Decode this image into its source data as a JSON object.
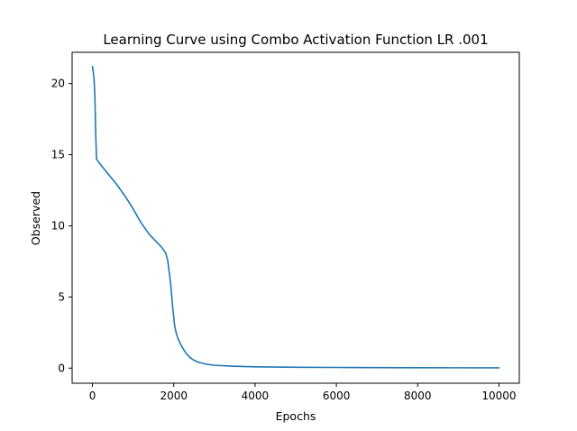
{
  "chart_data": {
    "type": "line",
    "title": "Learning Curve using Combo Activation Function  LR .001",
    "xlabel": "Epochs",
    "ylabel": "Observed",
    "xlim": [
      -500,
      10500
    ],
    "ylim": [
      -1.06,
      22.2
    ],
    "xticks": [
      0,
      2000,
      4000,
      6000,
      8000,
      10000
    ],
    "xtick_labels": [
      "0",
      "2000",
      "4000",
      "6000",
      "8000",
      "10000"
    ],
    "yticks": [
      0,
      5,
      10,
      15,
      20
    ],
    "ytick_labels": [
      "0",
      "5",
      "10",
      "15",
      "20"
    ],
    "grid": false,
    "legend": "none",
    "series": [
      {
        "color": "#1f77b4",
        "x": [
          0,
          20,
          40,
          60,
          80,
          100,
          200,
          400,
          600,
          800,
          1000,
          1200,
          1400,
          1600,
          1700,
          1800,
          1850,
          1900,
          1920,
          1940,
          1960,
          1980,
          2000,
          2020,
          2050,
          2100,
          2200,
          2300,
          2400,
          2500,
          2600,
          2800,
          3000,
          3500,
          4000,
          5000,
          6000,
          7000,
          8000,
          9000,
          10000
        ],
        "y": [
          21.2,
          20.8,
          20.3,
          19.0,
          16.5,
          14.7,
          14.3,
          13.6,
          12.9,
          12.1,
          11.2,
          10.2,
          9.4,
          8.8,
          8.5,
          8.1,
          7.6,
          6.5,
          6.0,
          5.4,
          4.7,
          4.1,
          3.6,
          3.0,
          2.6,
          2.1,
          1.5,
          1.05,
          0.75,
          0.55,
          0.42,
          0.28,
          0.2,
          0.13,
          0.09,
          0.06,
          0.05,
          0.04,
          0.03,
          0.025,
          0.02
        ]
      }
    ]
  }
}
